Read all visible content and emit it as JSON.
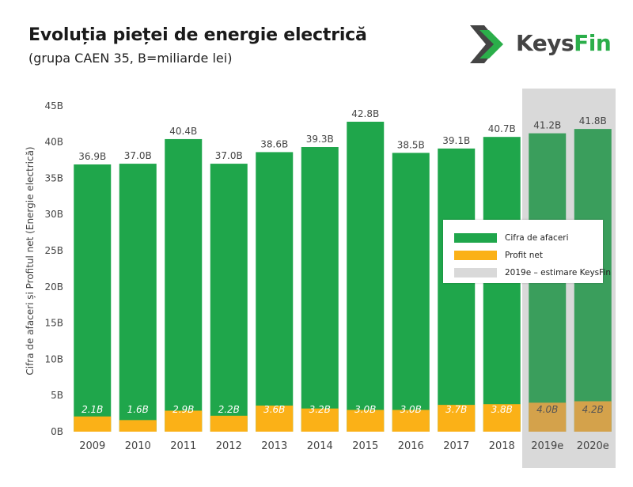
{
  "header": {
    "title": "Evoluția pieței de energie electrică",
    "subtitle": "(grupa CAEN 35, B=miliarde lei)"
  },
  "logo": {
    "name_prefix": "Keys",
    "name_suffix": "Fin",
    "icon": "chevron-arrows-icon",
    "colors": {
      "dark": "#444444",
      "accent": "#2bae4a"
    }
  },
  "colors": {
    "revenue": "#1fa64b",
    "profit": "#fbb117",
    "estimate_band": "#d9d9d9",
    "estimate_revenue": "#3a9e5c",
    "estimate_profit": "#d4a24b",
    "profit_label": "#ffffff",
    "estimate_label": "#555555",
    "axis_text": "#444444"
  },
  "legend": {
    "items": [
      {
        "label": "Cifra de afaceri",
        "color": "#1fa64b"
      },
      {
        "label": "Profit net",
        "color": "#fbb117"
      },
      {
        "label": "2019e – estimare KeysFin",
        "color": "#d9d9d9"
      }
    ]
  },
  "chart_data": {
    "type": "bar",
    "title": "Evoluția pieței de energie electrică",
    "subtitle": "(grupa CAEN 35, B=miliarde lei)",
    "ylabel": "Cifra de afaceri și Profitul net (Energie electrică)",
    "xlabel": "",
    "ylim": [
      0,
      47
    ],
    "yticks": [
      0,
      5,
      10,
      15,
      20,
      25,
      30,
      35,
      40,
      45
    ],
    "ytick_labels": [
      "0B",
      "5B",
      "10B",
      "15B",
      "20B",
      "25B",
      "30B",
      "35B",
      "40B",
      "45B"
    ],
    "categories": [
      "2009",
      "2010",
      "2011",
      "2012",
      "2013",
      "2014",
      "2015",
      "2016",
      "2017",
      "2018",
      "2019e",
      "2020e"
    ],
    "estimated": [
      false,
      false,
      false,
      false,
      false,
      false,
      false,
      false,
      false,
      false,
      true,
      true
    ],
    "series": [
      {
        "name": "Cifra de afaceri",
        "values": [
          36.9,
          37.0,
          40.4,
          37.0,
          38.6,
          39.3,
          42.8,
          38.5,
          39.1,
          40.7,
          41.2,
          41.8
        ],
        "labels": [
          "36.9B",
          "37.0B",
          "40.4B",
          "37.0B",
          "38.6B",
          "39.3B",
          "42.8B",
          "38.5B",
          "39.1B",
          "40.7B",
          "41.2B",
          "41.8B"
        ]
      },
      {
        "name": "Profit net",
        "values": [
          2.1,
          1.6,
          2.9,
          2.2,
          3.6,
          3.2,
          3.0,
          3.0,
          3.7,
          3.8,
          4.0,
          4.2
        ],
        "labels": [
          "2.1B",
          "1.6B",
          "2.9B",
          "2.2B",
          "3.6B",
          "3.2B",
          "3.0B",
          "3.0B",
          "3.7B",
          "3.8B",
          "4.0B",
          "4.2B"
        ]
      }
    ],
    "grid": false,
    "legend_position": "right-middle"
  }
}
